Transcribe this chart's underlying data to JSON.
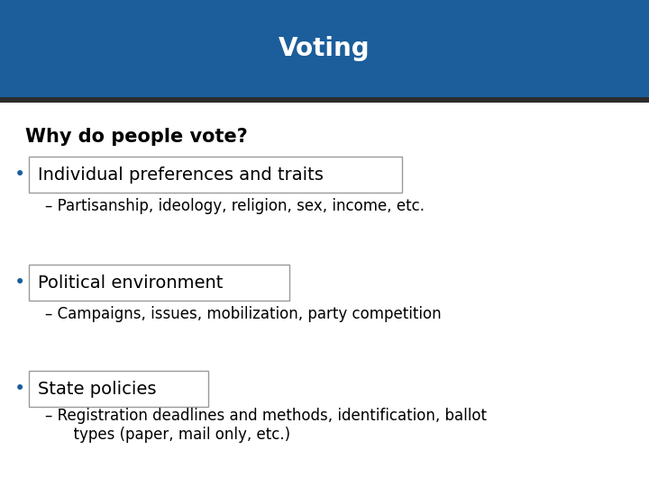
{
  "title": "Voting",
  "title_bg_color": "#1B5E9B",
  "title_text_color": "#FFFFFF",
  "separator_color": "#2C2C2C",
  "bg_color": "#FFFFFF",
  "question": "Why do people vote?",
  "question_color": "#000000",
  "bullet_color": "#1B5E9B",
  "box_edge_color": "#999999",
  "box_bg_color": "#FFFFFF",
  "bullets": [
    {
      "header": "Individual preferences and traits",
      "detail": "– Partisanship, ideology, religion, sex, income, etc."
    },
    {
      "header": "Political environment",
      "detail": "– Campaigns, issues, mobilization, party competition"
    },
    {
      "header": "State policies",
      "detail": "– Registration deadlines and methods, identification, ballot\n      types (paper, mail only, etc.)"
    }
  ]
}
